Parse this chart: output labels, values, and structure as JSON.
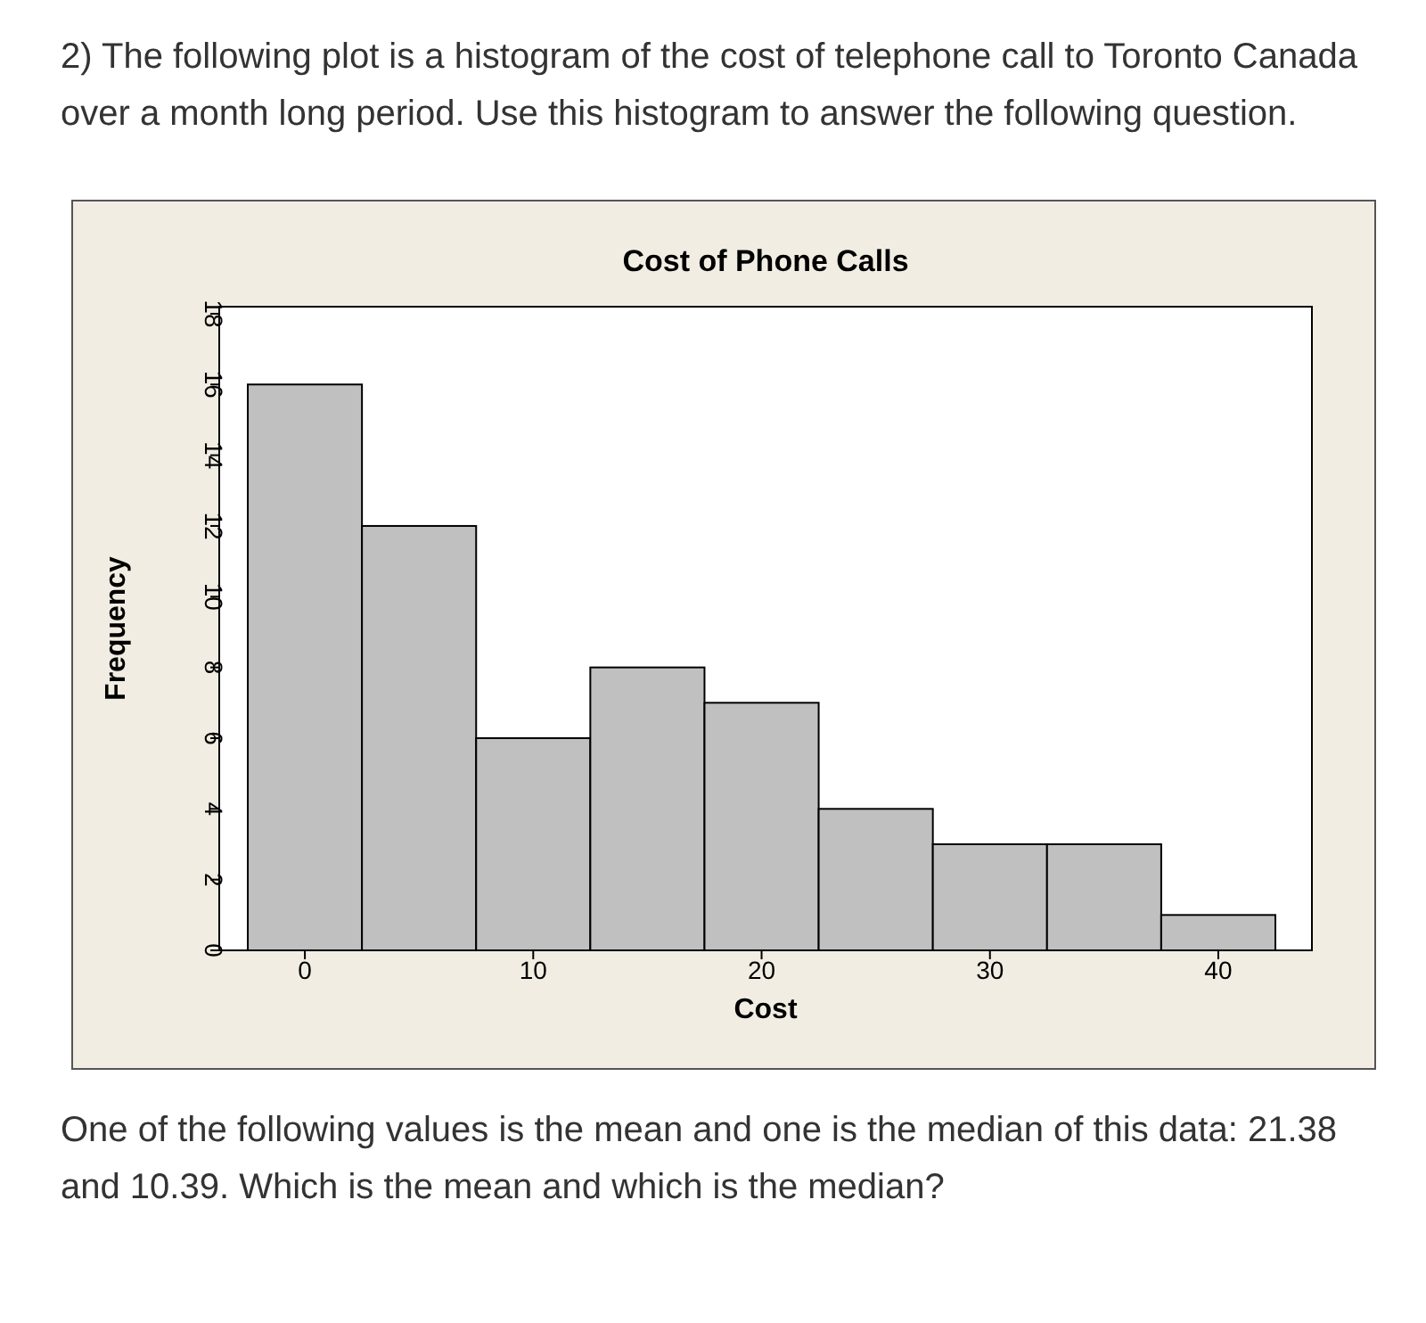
{
  "chart_data": {
    "type": "histogram",
    "title": "Cost of Phone Calls",
    "xlabel": "Cost",
    "ylabel": "Frequency",
    "bins": [
      -2.5,
      2.5,
      7.5,
      12.5,
      17.5,
      22.5,
      27.5,
      32.5,
      37.5,
      42.5
    ],
    "values": [
      16,
      12,
      6,
      8,
      7,
      4,
      3,
      3,
      1
    ],
    "color": "#c0c0c0",
    "xlim": [
      -3.75,
      44.1
    ],
    "xticks": [
      0,
      10,
      20,
      30,
      40
    ],
    "ylim": [
      0,
      18.2
    ],
    "yticks": [
      0,
      2,
      4,
      6,
      8,
      10,
      12,
      14,
      16,
      18
    ],
    "grid": false,
    "annotations": [
      "2) The following plot is a histogram of the cost of telephone call to Toronto Canada over a month long period. Use this histogram to answer the following question.",
      "One of the following values is the mean and one is the median of this data: 21.38 and 10.39. Which is the mean and which is the median?"
    ]
  }
}
